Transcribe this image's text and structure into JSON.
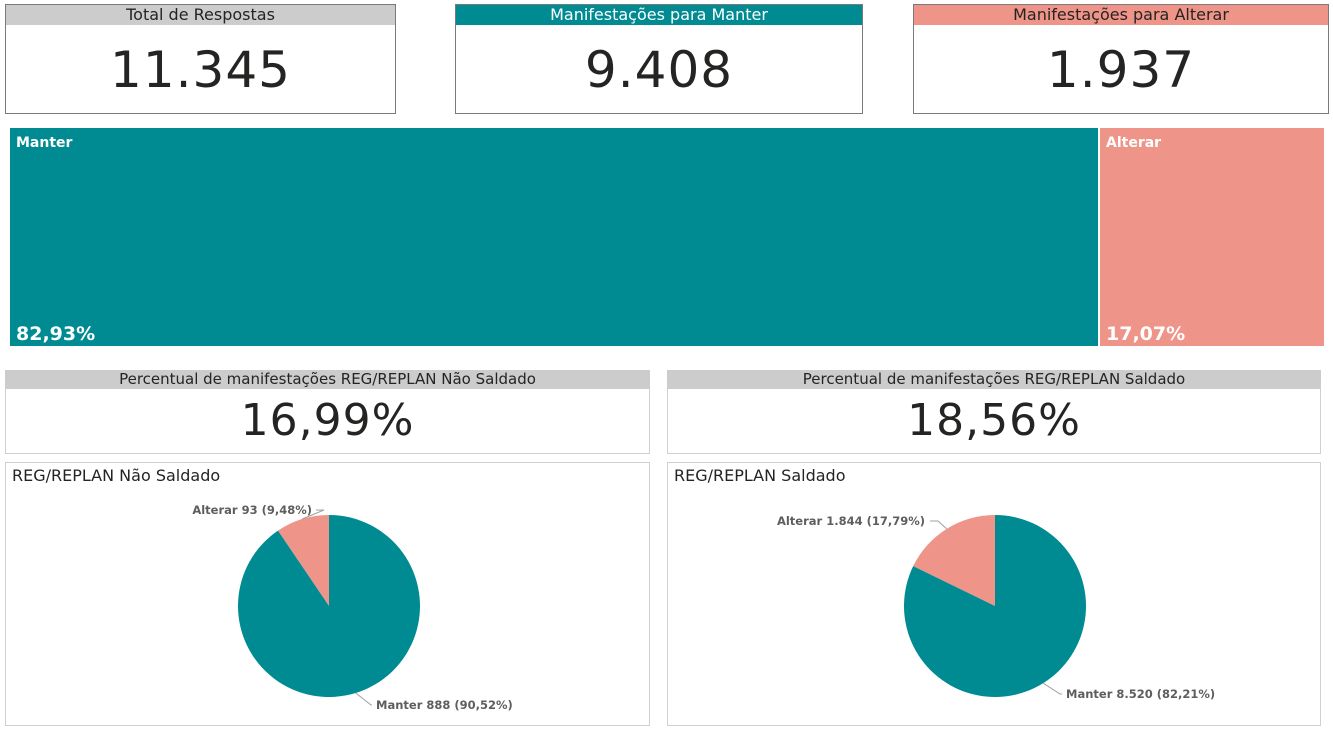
{
  "kpis": {
    "total": {
      "label": "Total de Respostas",
      "value": "11.345"
    },
    "manter": {
      "label": "Manifestações para Manter",
      "value": "9.408"
    },
    "alterar": {
      "label": "Manifestações para Alterar",
      "value": "1.937"
    }
  },
  "percent_cards": {
    "nao_saldado": {
      "label": "Percentual de manifestações REG/REPLAN Não Saldado",
      "value": "16,99%"
    },
    "saldado": {
      "label": "Percentual de manifestações REG/REPLAN Saldado",
      "value": "18,56%"
    }
  },
  "colors": {
    "manter": "#008b93",
    "alterar": "#ee9488",
    "header_gray": "#cccccc"
  },
  "chart_data": [
    {
      "type": "treemap",
      "categories": [
        "Manter",
        "Alterar"
      ],
      "values": [
        82.93,
        17.07
      ],
      "value_labels": [
        "82,93%",
        "17,07%"
      ]
    },
    {
      "type": "pie",
      "title": "REG/REPLAN Não Saldado",
      "categories": [
        "Alterar",
        "Manter"
      ],
      "values": [
        93,
        888
      ],
      "percents": [
        9.48,
        90.52
      ],
      "labels": [
        "Alterar 93 (9,48%)",
        "Manter 888 (90,52%)"
      ]
    },
    {
      "type": "pie",
      "title": "REG/REPLAN Saldado",
      "categories": [
        "Alterar",
        "Manter"
      ],
      "values": [
        1844,
        8520
      ],
      "percents": [
        17.79,
        82.21
      ],
      "labels": [
        "Alterar 1.844 (17,79%)",
        "Manter 8.520 (82,21%)"
      ]
    }
  ]
}
